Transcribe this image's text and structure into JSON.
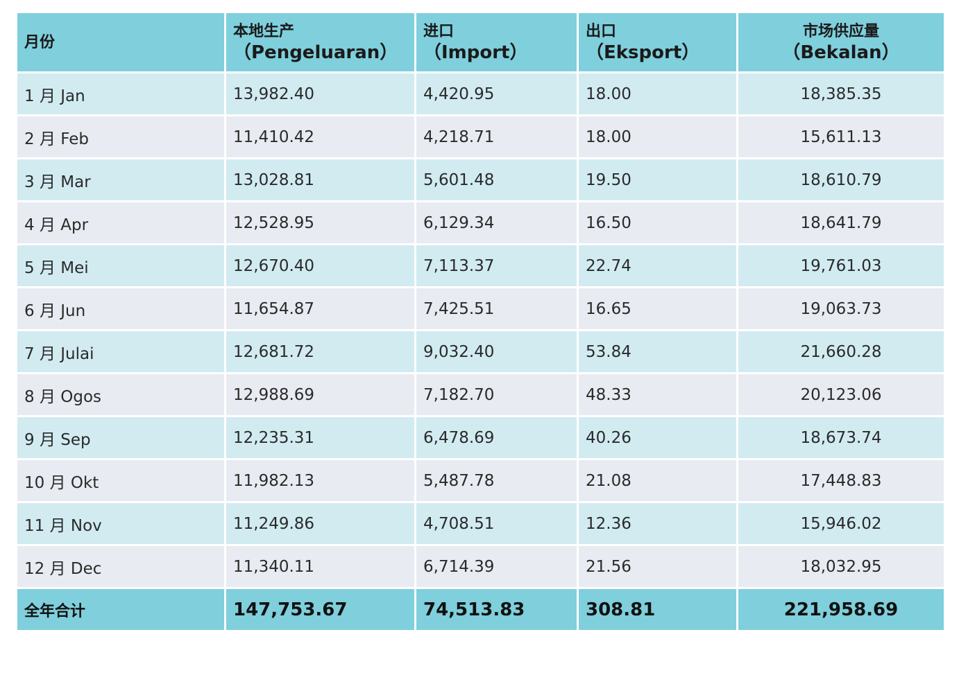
{
  "table": {
    "headers": [
      {
        "line1": "月份",
        "line2": ""
      },
      {
        "line1": "本地生产",
        "line2": "（Pengeluaran）"
      },
      {
        "line1": "进口",
        "line2": "（Import）"
      },
      {
        "line1": "出口",
        "line2": "（Eksport）"
      },
      {
        "line1": "市场供应量",
        "line2": "（Bekalan）"
      }
    ],
    "rows": [
      [
        "1 月 Jan",
        "13,982.40",
        "4,420.95",
        "18.00",
        "18,385.35"
      ],
      [
        "2 月 Feb",
        "11,410.42",
        "4,218.71",
        "18.00",
        "15,611.13"
      ],
      [
        "3 月 Mar",
        "13,028.81",
        "5,601.48",
        "19.50",
        "18,610.79"
      ],
      [
        "4 月 Apr",
        "12,528.95",
        "6,129.34",
        "16.50",
        "18,641.79"
      ],
      [
        "5 月 Mei",
        "12,670.40",
        "7,113.37",
        "22.74",
        "19,761.03"
      ],
      [
        "6 月 Jun",
        "11,654.87",
        "7,425.51",
        "16.65",
        "19,063.73"
      ],
      [
        "7 月 Julai",
        "12,681.72",
        "9,032.40",
        "53.84",
        "21,660.28"
      ],
      [
        "8 月 Ogos",
        "12,988.69",
        "7,182.70",
        "48.33",
        "20,123.06"
      ],
      [
        "9 月 Sep",
        "12,235.31",
        "6,478.69",
        "40.26",
        "18,673.74"
      ],
      [
        "10 月 Okt",
        "11,982.13",
        "5,487.78",
        "21.08",
        "17,448.83"
      ],
      [
        "11 月 Nov",
        "11,249.86",
        "4,708.51",
        "12.36",
        "15,946.02"
      ],
      [
        "12 月 Dec",
        "11,340.11",
        "6,714.39",
        "21.56",
        "18,032.95"
      ]
    ],
    "total": [
      "全年合计",
      "147,753.67",
      "74,513.83",
      "308.81",
      "221,958.69"
    ]
  },
  "colors": {
    "header_bg": "#7fcfdc",
    "row_odd_bg": "#d1ebf1",
    "row_even_bg": "#e8ebf1",
    "grid_line": "#ffffff"
  }
}
